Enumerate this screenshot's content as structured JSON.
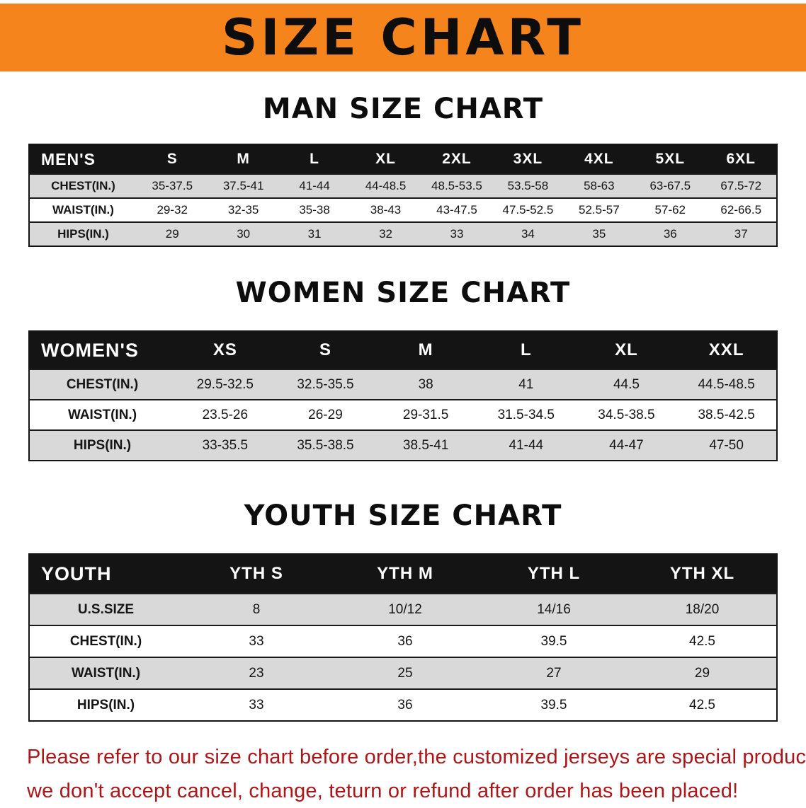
{
  "banner": {
    "title": "SIZE CHART"
  },
  "colors": {
    "banner-bg": "#f5841c",
    "table-header-bg": "#141414",
    "row-stripe": "#d9d9d9",
    "note-red": "#ad1619"
  },
  "chart_data": [
    {
      "type": "table",
      "title": "MAN SIZE CHART",
      "corner": "MEN'S",
      "columns": [
        "S",
        "M",
        "L",
        "XL",
        "2XL",
        "3XL",
        "4XL",
        "5XL",
        "6XL"
      ],
      "rows": [
        {
          "label": "CHEST(IN.)",
          "values": [
            "35-37.5",
            "37.5-41",
            "41-44",
            "44-48.5",
            "48.5-53.5",
            "53.5-58",
            "58-63",
            "63-67.5",
            "67.5-72"
          ]
        },
        {
          "label": "WAIST(IN.)",
          "values": [
            "29-32",
            "32-35",
            "35-38",
            "38-43",
            "43-47.5",
            "47.5-52.5",
            "52.5-57",
            "57-62",
            "62-66.5"
          ]
        },
        {
          "label": "HIPS(IN.)",
          "values": [
            "29",
            "30",
            "31",
            "32",
            "33",
            "34",
            "35",
            "36",
            "37"
          ]
        }
      ]
    },
    {
      "type": "table",
      "title": "WOMEN SIZE CHART",
      "corner": "WOMEN'S",
      "columns": [
        "XS",
        "S",
        "M",
        "L",
        "XL",
        "XXL"
      ],
      "rows": [
        {
          "label": "CHEST(IN.)",
          "values": [
            "29.5-32.5",
            "32.5-35.5",
            "38",
            "41",
            "44.5",
            "44.5-48.5"
          ]
        },
        {
          "label": "WAIST(IN.)",
          "values": [
            "23.5-26",
            "26-29",
            "29-31.5",
            "31.5-34.5",
            "34.5-38.5",
            "38.5-42.5"
          ]
        },
        {
          "label": "HIPS(IN.)",
          "values": [
            "33-35.5",
            "35.5-38.5",
            "38.5-41",
            "41-44",
            "44-47",
            "47-50"
          ]
        }
      ]
    },
    {
      "type": "table",
      "title": "YOUTH SIZE CHART",
      "corner": "YOUTH",
      "columns": [
        "YTH S",
        "YTH M",
        "YTH L",
        "YTH XL"
      ],
      "rows": [
        {
          "label": "U.S.SIZE",
          "values": [
            "8",
            "10/12",
            "14/16",
            "18/20"
          ]
        },
        {
          "label": "CHEST(IN.)",
          "values": [
            "33",
            "36",
            "39.5",
            "42.5"
          ]
        },
        {
          "label": "WAIST(IN.)",
          "values": [
            "23",
            "25",
            "27",
            "29"
          ]
        },
        {
          "label": "HIPS(IN.)",
          "values": [
            "33",
            "36",
            "39.5",
            "42.5"
          ]
        }
      ]
    }
  ],
  "footer": {
    "line1": "Please refer to our size chart before order,the customized jerseys are special products,",
    "line2": "we don't accept cancel, change, teturn or refund after order has been placed!"
  }
}
